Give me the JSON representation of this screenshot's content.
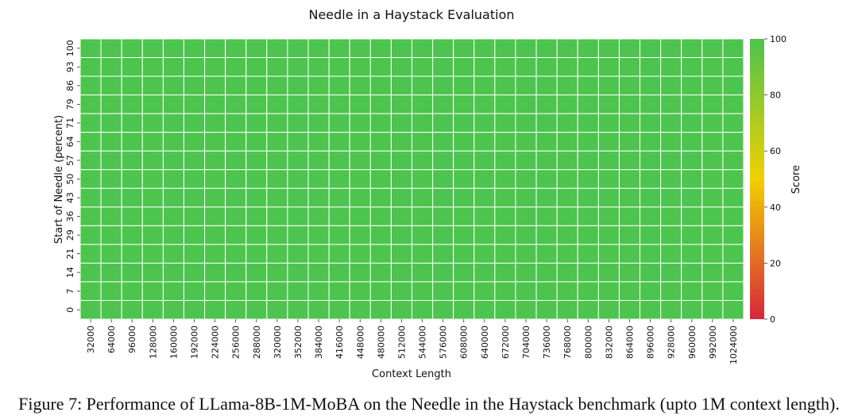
{
  "caption": "Figure 7: Performance of LLama-8B-1M-MoBA on the Needle in the Haystack benchmark (upto 1M context length).",
  "chart_data": {
    "type": "heatmap",
    "title": "Needle in a Haystack Evaluation",
    "xlabel": "Context Length",
    "ylabel": "Start of Needle (percent)",
    "x": [
      "32000",
      "64000",
      "96000",
      "128000",
      "160000",
      "192000",
      "224000",
      "256000",
      "288000",
      "320000",
      "352000",
      "384000",
      "416000",
      "448000",
      "480000",
      "512000",
      "544000",
      "576000",
      "608000",
      "640000",
      "672000",
      "704000",
      "736000",
      "768000",
      "800000",
      "832000",
      "864000",
      "896000",
      "928000",
      "960000",
      "992000",
      "1024000"
    ],
    "y": [
      "100",
      "93",
      "86",
      "79",
      "71",
      "64",
      "57",
      "50",
      "43",
      "36",
      "29",
      "21",
      "14",
      "7",
      "0"
    ],
    "value": 100,
    "colorbar": {
      "label": "Score",
      "ticks": [
        "100",
        "80",
        "60",
        "40",
        "20",
        "0"
      ],
      "range": [
        0,
        100
      ],
      "colors": [
        "#d7263d",
        "#f2c500",
        "#4cc44d"
      ]
    },
    "grid": true
  }
}
